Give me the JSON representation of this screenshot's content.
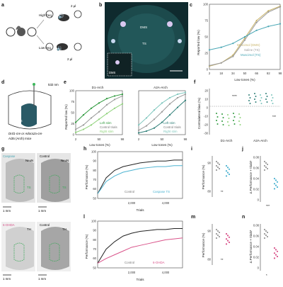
{
  "panels": {
    "a": {
      "letter": "a",
      "high_freq": "High freq.",
      "low_freq": "Low freq.",
      "reward": "2 µl"
    },
    "b": {
      "letter": "b",
      "dms": "DMS",
      "ts": "TS",
      "inset_dms": "DMS"
    },
    "c": {
      "letter": "c",
      "ylabel": "Reported low (%)",
      "xlabel": "Low tones (%)",
      "xticks": [
        "2",
        "18",
        "34",
        "50",
        "66",
        "82",
        "98"
      ],
      "yticks": [
        "0",
        "25",
        "50",
        "75",
        "100"
      ],
      "legend": [
        "Muscimol (DMS)",
        "Saline (TS)",
        "Muscimol (TS)"
      ]
    },
    "d": {
      "letter": "d",
      "laser": "532 nm",
      "ts": "TS",
      "mouse_line1": "Drd1-cre or Adora2a-cre",
      "mouse_line2": "Ai35 (Arch) mice"
    },
    "e": {
      "letter": "e",
      "title1": "D1-Arch",
      "title2": "A2A-Arch",
      "ylabel": "Reported low (%)",
      "xlabel": "Low tones (%)",
      "xticks": [
        "2",
        "50",
        "98"
      ],
      "yticks": [
        "0",
        "25",
        "50",
        "75",
        "100"
      ],
      "legend": [
        "Left stim",
        "Control trials",
        "Right stim"
      ]
    },
    "f": {
      "letter": "f",
      "ylabel": "Contralateral bias (%)",
      "yticks": [
        "20",
        "10",
        "0",
        "-10",
        "-20",
        "-30"
      ],
      "sig": "****",
      "sig_right": "***",
      "xcat": [
        "D1-Arch",
        "A2A-Arch"
      ]
    },
    "g": {
      "letter": "g",
      "caspase": "Caspase",
      "control": "Control",
      "neun1": "NeuN",
      "neun2": "NeuN",
      "ts1": "TS",
      "ts2": "TS",
      "scale1": "1 mm",
      "scale2": "1 mm",
      "ohda": "6-OHDA",
      "control2": "Control",
      "th1": "TH",
      "th2": "TH",
      "scale3": "1 mm",
      "scale4": "1 mm"
    },
    "h": {
      "letter": "h",
      "ylabel": "Performance (%)",
      "xlabel": "Trials",
      "xticks": [
        "2,000",
        "4,000"
      ],
      "yticks": [
        "50",
        "60",
        "70",
        "80",
        "90",
        "100"
      ],
      "legend_control": "Control",
      "legend_treat": "Caspase TS"
    },
    "i": {
      "letter": "i",
      "ylabel": "Performance (%)",
      "sig": "**",
      "yticks": [
        "80",
        "90"
      ]
    },
    "j": {
      "letter": "j",
      "ylabel": "Δ Performance + trials¹",
      "sig": "***",
      "yticks": [
        "0.08",
        "0.06",
        "0.04",
        "0.02",
        "0"
      ]
    },
    "l": {
      "letter": "l",
      "ylabel": "Performance (%)",
      "xlabel": "Trials",
      "xticks": [
        "2,000",
        "4,000"
      ],
      "yticks": [
        "50",
        "60",
        "70",
        "80",
        "90",
        "100"
      ],
      "legend_control": "Control",
      "legend_treat": "6-OHDA"
    },
    "m": {
      "letter": "m",
      "ylabel": "Performance (%)",
      "sig": "**",
      "yticks": [
        "80",
        "90"
      ]
    },
    "n": {
      "letter": "n",
      "ylabel": "Δ Performance + trials¹",
      "sig": "*",
      "yticks": [
        "0.08",
        "0.06",
        "0.04",
        "0.02",
        "0"
      ]
    }
  },
  "colors": {
    "tan": "#c9b46a",
    "gray": "#9a9a9a",
    "teal": "#4aa7b5",
    "green": "#2f9a3e",
    "lgreen": "#8fd27a",
    "dteal": "#2f7f78",
    "lteal": "#7ec6bd",
    "pink": "#d9538a",
    "black": "#222222",
    "cyan": "#4db3d1"
  },
  "chart_data": [
    {
      "id": "c",
      "type": "line",
      "x": [
        2,
        18,
        34,
        50,
        66,
        82,
        98
      ],
      "ylim": [
        0,
        100
      ],
      "series": [
        {
          "name": "Muscimol (DMS)",
          "values": [
            5,
            10,
            22,
            48,
            75,
            90,
            97
          ]
        },
        {
          "name": "Saline (TS)",
          "values": [
            6,
            10,
            20,
            45,
            72,
            88,
            96
          ]
        },
        {
          "name": "Muscimol (TS)",
          "values": [
            30,
            34,
            40,
            50,
            60,
            66,
            70
          ]
        }
      ]
    },
    {
      "id": "e1",
      "type": "line",
      "x": [
        2,
        18,
        34,
        50,
        66,
        82,
        98
      ],
      "ylim": [
        0,
        100
      ],
      "series": [
        {
          "name": "Left stim",
          "values": [
            28,
            45,
            60,
            72,
            82,
            88,
            92
          ]
        },
        {
          "name": "Control trials",
          "values": [
            12,
            22,
            38,
            52,
            68,
            80,
            88
          ]
        },
        {
          "name": "Right stim",
          "values": [
            5,
            12,
            22,
            35,
            48,
            60,
            70
          ]
        }
      ]
    },
    {
      "id": "e2",
      "type": "line",
      "x": [
        2,
        18,
        34,
        50,
        66,
        82,
        98
      ],
      "ylim": [
        0,
        100
      ],
      "series": [
        {
          "name": "Left stim",
          "values": [
            4,
            8,
            15,
            28,
            45,
            62,
            78
          ]
        },
        {
          "name": "Control trials",
          "values": [
            10,
            20,
            35,
            52,
            70,
            84,
            92
          ]
        },
        {
          "name": "Right stim",
          "values": [
            22,
            38,
            56,
            72,
            84,
            92,
            96
          ]
        }
      ]
    },
    {
      "id": "h",
      "type": "line",
      "ylim": [
        50,
        100
      ],
      "xlim": [
        0,
        5000
      ],
      "series": [
        {
          "name": "Control",
          "values": [
            55,
            72,
            80,
            84,
            86,
            88,
            89,
            90,
            90,
            91,
            91
          ]
        },
        {
          "name": "Caspase TS",
          "values": [
            55,
            68,
            74,
            78,
            80,
            82,
            83,
            84,
            84,
            85,
            85
          ]
        }
      ]
    },
    {
      "id": "l",
      "type": "line",
      "ylim": [
        50,
        100
      ],
      "xlim": [
        0,
        5000
      ],
      "series": [
        {
          "name": "Control",
          "values": [
            55,
            70,
            78,
            84,
            87,
            89,
            90,
            91,
            91,
            92,
            92
          ]
        },
        {
          "name": "6-OHDA",
          "values": [
            55,
            60,
            64,
            68,
            72,
            74,
            76,
            78,
            80,
            81,
            82
          ]
        }
      ]
    }
  ]
}
